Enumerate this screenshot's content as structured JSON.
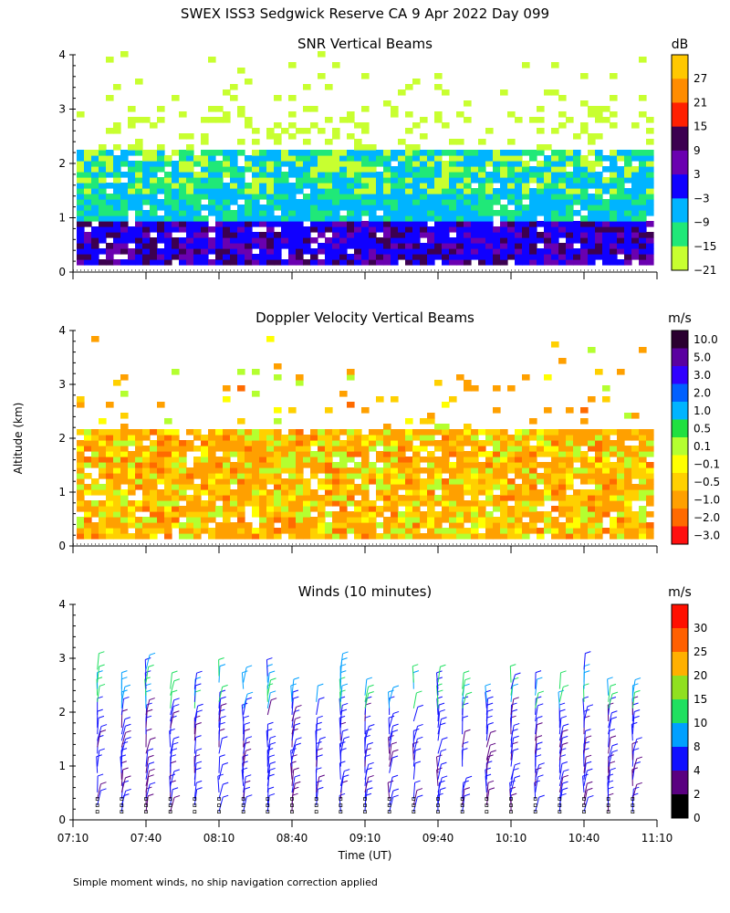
{
  "figure": {
    "title": "SWEX ISS3 Sedgwick Reserve CA   9 Apr 2022 Day 099",
    "ylabel": "Altitude (km)",
    "xlabel": "Time (UT)",
    "footnote": "Simple moment winds, no ship navigation correction applied"
  },
  "chart_data": [
    {
      "type": "heatmap",
      "title": "SNR Vertical Beams",
      "ylim": [
        0,
        4
      ],
      "yticks": [
        "0",
        "1",
        "2",
        "3",
        "4"
      ],
      "xlim": [
        "07:10",
        "11:10"
      ],
      "colorbar": {
        "unit": "dB",
        "labels": [
          "27",
          "21",
          "15",
          "9",
          "3",
          "−3",
          "−9",
          "−15",
          "−21"
        ],
        "colors": [
          "#ffc800",
          "#ff8c00",
          "#ff2000",
          "#3c0050",
          "#6a00b0",
          "#1000ff",
          "#00b4ff",
          "#20e878",
          "#c8ff30"
        ]
      }
    },
    {
      "type": "heatmap",
      "title": "Doppler Velocity Vertical Beams",
      "ylim": [
        0,
        4
      ],
      "yticks": [
        "0",
        "1",
        "2",
        "3",
        "4"
      ],
      "xlim": [
        "07:10",
        "11:10"
      ],
      "colorbar": {
        "unit": "m/s",
        "labels": [
          "10.0",
          "5.0",
          "3.0",
          "2.0",
          "1.0",
          "0.5",
          "0.1",
          "−0.1",
          "−0.5",
          "−1.0",
          "−2.0",
          "−3.0"
        ],
        "colors": [
          "#2a0030",
          "#5a00a0",
          "#3000ff",
          "#0060ff",
          "#00b4ff",
          "#20e040",
          "#b4ff30",
          "#ffff00",
          "#ffd000",
          "#ffa000",
          "#ff6a00",
          "#ff1010"
        ]
      }
    },
    {
      "type": "scatter",
      "title": "Winds (10 minutes)",
      "ylim": [
        0,
        4
      ],
      "yticks": [
        "0",
        "1",
        "2",
        "3",
        "4"
      ],
      "xlim": [
        "07:10",
        "11:10"
      ],
      "xticks": [
        "07:10",
        "07:40",
        "08:10",
        "08:40",
        "09:10",
        "09:40",
        "10:10",
        "10:40",
        "11:10"
      ],
      "colorbar": {
        "unit": "m/s",
        "labels": [
          "30",
          "25",
          "20",
          "15",
          "10",
          "8",
          "4",
          "2",
          "0"
        ],
        "colors": [
          "#ff1000",
          "#ff6000",
          "#ffb000",
          "#90e020",
          "#20e060",
          "#00a0ff",
          "#1010ff",
          "#5a0080",
          "#000000"
        ]
      }
    }
  ]
}
